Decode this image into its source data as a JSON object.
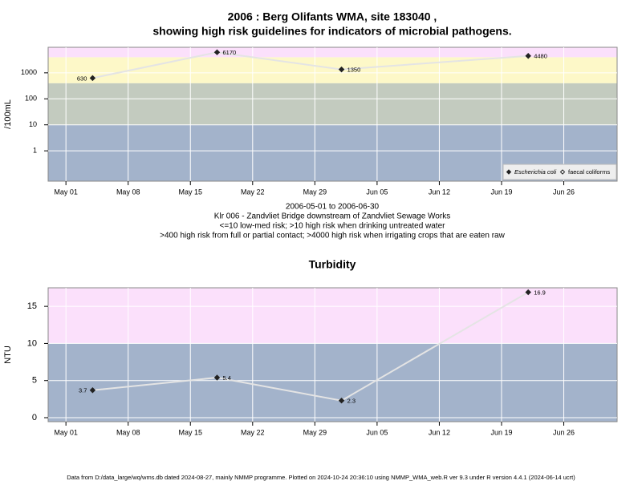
{
  "chart_data": [
    {
      "type": "line",
      "title": [
        "2006 : Berg Olifants WMA, site 183040 ,",
        "showing high risk guidelines for indicators of microbial pathogens."
      ],
      "ylabel": "/100mL",
      "log_y": true,
      "grid": true,
      "x": [
        "May 04",
        "May 18",
        "Jun 01",
        "Jun 22"
      ],
      "xlim": [
        "Apr 29",
        "Jul 02"
      ],
      "xticks": [
        "May 01",
        "May 08",
        "May 15",
        "May 22",
        "May 29",
        "Jun 05",
        "Jun 12",
        "Jun 19",
        "Jun 26"
      ],
      "ylim": [
        0.068,
        9600
      ],
      "yticks": [
        1,
        10,
        100,
        1000
      ],
      "band_limits": [
        10,
        400,
        4000
      ],
      "band_colors": [
        "#a3b3cb",
        "#c3cbbf",
        "#fdf8c8",
        "#fbe0fb"
      ],
      "legend": "lower right",
      "series": [
        {
          "name": "Escherichia coli",
          "color": "#222222",
          "line_color": "#e4e4e4",
          "marker": "filled",
          "values": [
            630,
            6170,
            1350,
            4480
          ]
        },
        {
          "name": "faecal coliforms",
          "color": "#222222",
          "line_color": "#e4e4e4",
          "marker": "open",
          "values": [
            null,
            null,
            null,
            null
          ]
        }
      ],
      "notes": [
        "2006-05-01 to 2006-06-30",
        "Klr 006 - Zandvliet Bridge downstream of Zandvliet Sewage Works",
        "<=10 low-med risk; >10 high risk when drinking untreated water",
        ">400 high risk from full or partial contact; >4000 high risk when irrigating crops that are eaten raw"
      ]
    },
    {
      "type": "line",
      "title": [
        "Turbidity"
      ],
      "ylabel": "NTU",
      "log_y": false,
      "grid": true,
      "x": [
        "May 04",
        "May 18",
        "Jun 01",
        "Jun 22"
      ],
      "xlim": [
        "Apr 29",
        "Jul 02"
      ],
      "xticks": [
        "May 01",
        "May 08",
        "May 15",
        "May 22",
        "May 29",
        "Jun 05",
        "Jun 12",
        "Jun 19",
        "Jun 26"
      ],
      "ylim": [
        -0.54,
        17.5
      ],
      "yticks": [
        0,
        5,
        10,
        15
      ],
      "band_limits": [
        10
      ],
      "band_colors": [
        "#a3b3cb",
        "#fbe0fb"
      ],
      "series": [
        {
          "name": "Turbidity",
          "color": "#222222",
          "line_color": "#e4e4e4",
          "marker": "filled",
          "values": [
            3.7,
            5.4,
            2.3,
            16.9
          ]
        }
      ]
    }
  ],
  "footer": "Data from D:/data_large/wq/wms.db dated 2024-08-27, mainly NMMP programme. Plotted on 2024-10-24 20:36:10 using NMMP_WMA_web.R ver 9.3 under R version 4.4.1 (2024-06-14 ucrt)"
}
